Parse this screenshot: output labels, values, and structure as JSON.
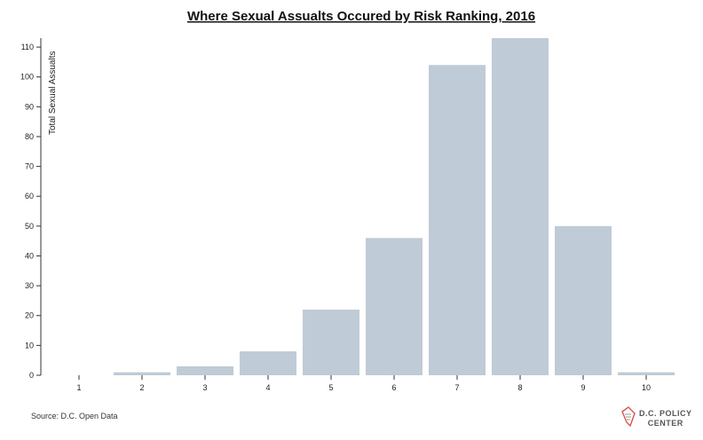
{
  "chart_data": {
    "type": "bar",
    "title": "Where Sexual Assualts Occured by Risk Ranking, 2016",
    "xlabel": "",
    "ylabel": "Total Sexual Assualts",
    "categories": [
      "1",
      "2",
      "3",
      "4",
      "5",
      "6",
      "7",
      "8",
      "9",
      "10"
    ],
    "values": [
      0,
      1,
      3,
      8,
      22,
      46,
      104,
      113,
      50,
      1
    ],
    "ylim": [
      0,
      113
    ],
    "yticks": [
      "0",
      "10",
      "20",
      "30",
      "40",
      "50",
      "60",
      "70",
      "80",
      "90",
      "100",
      "110"
    ],
    "bar_color": "#bfcbd6",
    "grid": false
  },
  "footer": {
    "source": "Source: D.C. Open Data",
    "logo_line1": "D.C. POLICY",
    "logo_line2": "CENTER"
  }
}
